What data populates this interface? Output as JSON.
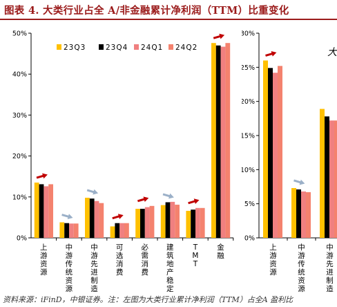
{
  "title": "图表 4. 大类行业占全 A/非金融累计净利润（TTM）比重变化",
  "footer": "资料来源：iFinD，中银证券。注：左图为大类行业累计净利润（TTM）占全A 盈利比",
  "colors": {
    "title": "#9b1b1b",
    "series": [
      "#ffc000",
      "#000000",
      "#f08080",
      "#f4826e"
    ],
    "arrow_up": "#c00000",
    "arrow_down": "#9bb0c8"
  },
  "chart_data": [
    {
      "type": "bar",
      "categories": [
        "上游资源",
        "中游传统资源",
        "中游先进制造",
        "可选消费",
        "必需消费",
        "建筑地产稳定",
        "TMT",
        "金融"
      ],
      "series": [
        {
          "name": "23Q3",
          "values": [
            13.5,
            3.8,
            9.8,
            2.8,
            7.1,
            8.0,
            6.6,
            47.6
          ]
        },
        {
          "name": "23Q4",
          "values": [
            13.1,
            3.6,
            9.6,
            3.6,
            7.1,
            8.7,
            6.9,
            47.0
          ]
        },
        {
          "name": "24Q1",
          "values": [
            12.6,
            3.5,
            9.0,
            3.6,
            7.5,
            8.8,
            7.3,
            46.7
          ]
        },
        {
          "name": "24Q2",
          "values": [
            13.1,
            3.5,
            8.5,
            3.6,
            7.8,
            8.1,
            7.3,
            47.6
          ]
        }
      ],
      "arrows": [
        "up",
        "down",
        "down",
        "up",
        "up",
        "down",
        "up",
        "up"
      ],
      "ylim": [
        0,
        50
      ],
      "yticks": [
        "0%",
        "10%",
        "20%",
        "30%",
        "40%",
        "50%"
      ],
      "grid": false,
      "legend": "top-left"
    },
    {
      "type": "bar",
      "categories": [
        "上游资源",
        "中游传统资源",
        "中游先进制造"
      ],
      "series": [
        {
          "name": "23Q3",
          "values": [
            26.0,
            7.3,
            18.9
          ]
        },
        {
          "name": "23Q4",
          "values": [
            24.9,
            7.1,
            17.8
          ]
        },
        {
          "name": "24Q1",
          "values": [
            24.2,
            6.8,
            17.2
          ]
        },
        {
          "name": "24Q2",
          "values": [
            25.2,
            6.7,
            17.2
          ]
        }
      ],
      "arrows": [
        "up",
        "down",
        ""
      ],
      "annotation": "大",
      "ylim": [
        0,
        30
      ],
      "yticks": [
        "0%",
        "5%",
        "10%",
        "15%",
        "20%",
        "25%",
        "30%"
      ],
      "grid": false
    }
  ]
}
